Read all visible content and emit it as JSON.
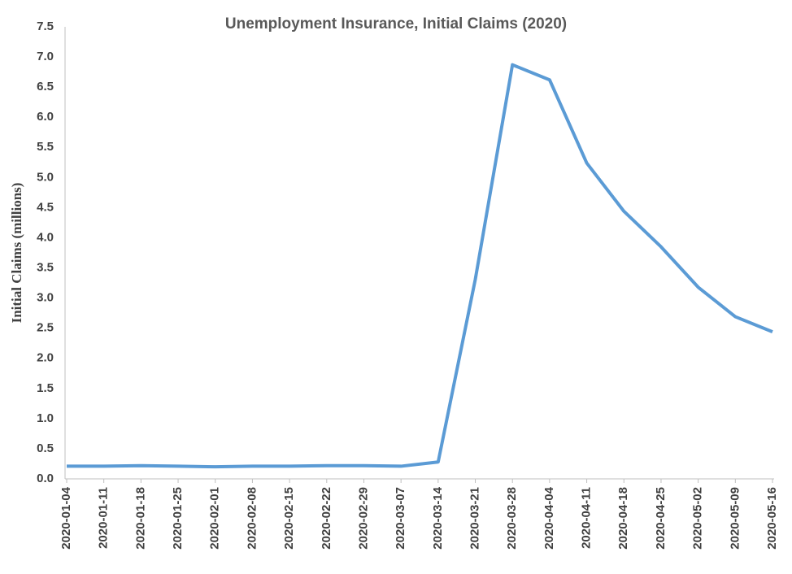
{
  "chart_data": {
    "type": "line",
    "title": "Unemployment Insurance, Initial Claims (2020)",
    "y_label": "Initial Claims (millions)",
    "categories": [
      "2020-01-04",
      "2020-01-11",
      "2020-01-18",
      "2020-01-25",
      "2020-02-01",
      "2020-02-08",
      "2020-02-15",
      "2020-02-22",
      "2020-02-29",
      "2020-03-07",
      "2020-03-14",
      "2020-03-21",
      "2020-03-28",
      "2020-04-04",
      "2020-04-11",
      "2020-04-18",
      "2020-04-25",
      "2020-05-02",
      "2020-05-09",
      "2020-05-16"
    ],
    "series": [
      {
        "name": "Initial Claims",
        "color": "#5b9bd5",
        "values": [
          0.21,
          0.21,
          0.22,
          0.21,
          0.2,
          0.21,
          0.21,
          0.22,
          0.22,
          0.21,
          0.28,
          3.31,
          6.87,
          6.62,
          5.24,
          4.44,
          3.85,
          3.18,
          2.69,
          2.44
        ]
      }
    ],
    "ylim": [
      0,
      7.5
    ],
    "yticks": [
      {
        "value": 0,
        "label": "0.0"
      },
      0.5,
      {
        "value": 1,
        "label": "1.0"
      },
      1.5,
      {
        "value": 2,
        "label": "2.0"
      },
      2.5,
      {
        "value": 3,
        "label": "3.0"
      },
      3.5,
      {
        "value": 4,
        "label": "4.0"
      },
      4.5,
      {
        "value": 5,
        "label": "5.0"
      },
      5.5,
      {
        "value": 6,
        "label": "6.0"
      },
      6.5,
      {
        "value": 7,
        "label": "7.0"
      },
      7.5
    ],
    "grid": false
  }
}
